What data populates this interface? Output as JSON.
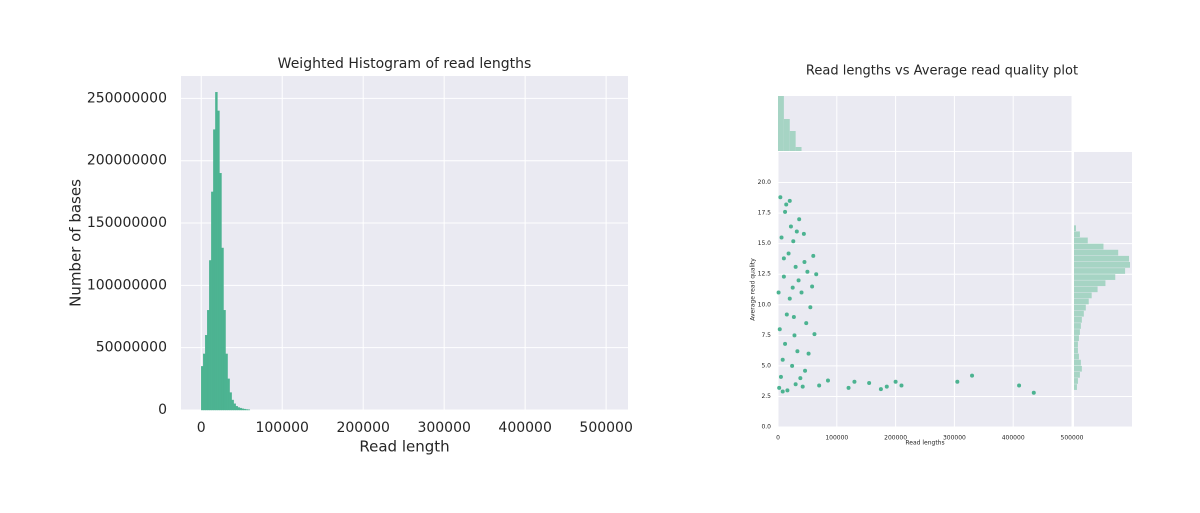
{
  "chart_data": [
    {
      "type": "histogram",
      "title": "Weighted Histogram of read lengths",
      "x_label": "Read length",
      "y_label": "Number of bases",
      "color": "#4cb391",
      "grid": true,
      "bins": [
        0,
        2500,
        5000,
        7500,
        10000,
        12500,
        15000,
        17500,
        20000,
        22500,
        25000,
        27500,
        30000,
        32500,
        35000,
        37500,
        40000,
        42500,
        45000,
        47500,
        50000,
        52500,
        55000,
        57500,
        60000
      ],
      "values": [
        35000000,
        45000000,
        60000000,
        80000000,
        120000000,
        175000000,
        225000000,
        255000000,
        240000000,
        190000000,
        130000000,
        80000000,
        45000000,
        25000000,
        14000000,
        8000000,
        5000000,
        3000000,
        2000000,
        1500000,
        1000000,
        700000,
        400000,
        200000
      ],
      "xlim": [
        -25000,
        527000
      ],
      "xticks": [
        0,
        100000,
        200000,
        300000,
        400000,
        500000
      ],
      "ylim": [
        0,
        268000000
      ],
      "yticks": [
        0,
        50000000,
        100000000,
        150000000,
        200000000,
        250000000
      ]
    },
    {
      "type": "scatter",
      "title": "Read lengths vs Average read quality plot",
      "x_label": "Read lengths",
      "y_label": "Average read quality",
      "color": "#4cb391",
      "grid": true,
      "x": [
        2000,
        5000,
        8000,
        12000,
        3000,
        15000,
        20000,
        25000,
        10000,
        30000,
        18000,
        6000,
        22000,
        12000,
        4000,
        35000,
        40000,
        45000,
        50000,
        55000,
        60000,
        28000,
        33000,
        38000,
        42000,
        16000,
        24000,
        14000,
        26000,
        32000,
        8000,
        1000,
        48000,
        62000,
        52000,
        44000,
        36000,
        20000,
        10000,
        27000,
        58000,
        65000,
        46000,
        30000,
        70000,
        85000,
        120000,
        130000,
        155000,
        175000,
        185000,
        200000,
        210000,
        305000,
        330000,
        410000,
        435000
      ],
      "values": [
        3.2,
        4.1,
        5.5,
        6.8,
        8.0,
        9.2,
        10.5,
        11.4,
        12.3,
        13.1,
        14.2,
        15.5,
        16.4,
        17.6,
        18.8,
        12.0,
        11.0,
        13.5,
        12.7,
        9.8,
        14.0,
        7.5,
        6.2,
        4.0,
        3.3,
        3.0,
        5.0,
        18.2,
        15.2,
        16.0,
        2.9,
        11.0,
        8.5,
        7.6,
        6.0,
        15.8,
        17.0,
        18.5,
        13.8,
        9.0,
        11.5,
        12.5,
        4.6,
        3.5,
        3.4,
        3.8,
        3.2,
        3.7,
        3.6,
        3.1,
        3.3,
        3.7,
        3.4,
        3.7,
        4.2,
        3.4,
        2.8
      ],
      "xlim": [
        0,
        500000
      ],
      "xticks": [
        0,
        100000,
        200000,
        300000,
        400000,
        500000
      ],
      "ylim": [
        0,
        22.5
      ],
      "yticks": [
        {
          "value": 0,
          "label": "0.0"
        },
        2.5,
        {
          "value": 5,
          "label": "5.0"
        },
        7.5,
        {
          "value": 10,
          "label": "10.0"
        },
        12.5,
        {
          "value": 15,
          "label": "15.0"
        },
        17.5,
        {
          "value": 20,
          "label": "20.0"
        }
      ],
      "x_marginal": {
        "color": "#a6d4c4",
        "bins": [
          0,
          10000,
          20000,
          30000,
          40000
        ],
        "values": [
          55000,
          32000,
          20000,
          4000
        ]
      },
      "y_marginal": {
        "color": "#a6d4c4",
        "bins": [
          3,
          3.5,
          4,
          4.5,
          5,
          5.5,
          6,
          6.5,
          7,
          7.5,
          8,
          8.5,
          9,
          9.5,
          10,
          10.5,
          11,
          11.5,
          12,
          12.5,
          13,
          13.5,
          14,
          14.5,
          15,
          15.5,
          16,
          16.5
        ],
        "values": [
          3000,
          4000,
          6000,
          8000,
          7000,
          5000,
          4000,
          4000,
          5000,
          6000,
          7000,
          8000,
          10000,
          12000,
          15000,
          18000,
          24000,
          32000,
          42000,
          52000,
          57000,
          56000,
          45000,
          30000,
          14000,
          6000,
          2000
        ]
      }
    }
  ]
}
